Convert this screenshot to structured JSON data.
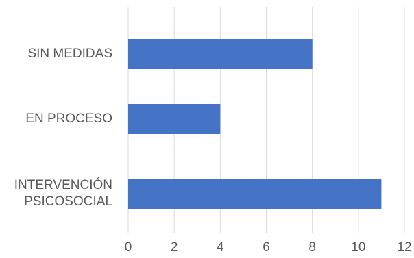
{
  "chart_data": {
    "type": "bar",
    "orientation": "horizontal",
    "categories": [
      [
        "SIN MEDIDAS"
      ],
      [
        "EN PROCESO"
      ],
      [
        "INTERVENCIÓN",
        "PSICOSOCIAL"
      ]
    ],
    "values": [
      8,
      4,
      11
    ],
    "xlim": [
      0,
      12
    ],
    "xticks": [
      "0",
      "2",
      "4",
      "6",
      "8",
      "10",
      "12"
    ],
    "grid": true,
    "legend": "none",
    "title": "",
    "xlabel": "",
    "ylabel": "",
    "bar_color": "#4472C4",
    "grid_color": "#D9D9D9",
    "text_color": "#595959"
  }
}
